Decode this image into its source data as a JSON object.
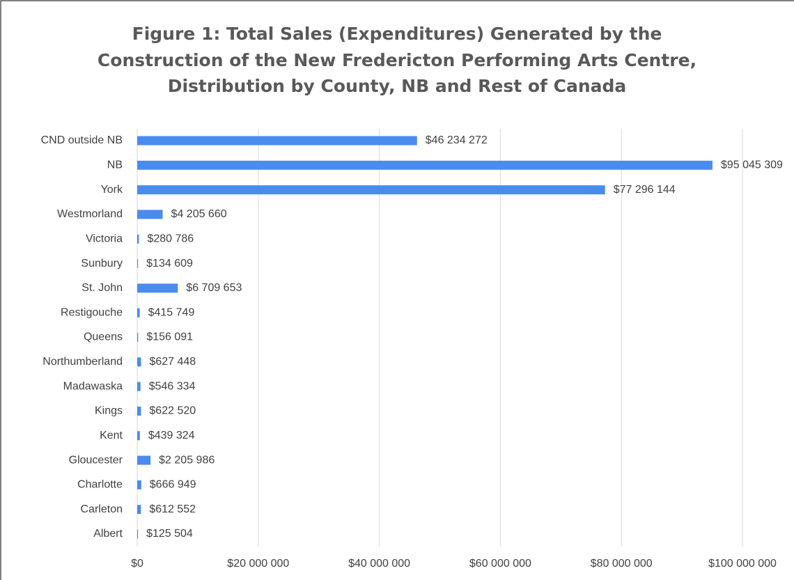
{
  "chart_data": {
    "type": "bar",
    "orientation": "horizontal",
    "title": [
      "Figure 1: Total Sales (Expenditures) Generated by the",
      "Construction of the New Fredericton Performing Arts Centre,",
      "Distribution by County, NB and Rest of Canada"
    ],
    "categories": [
      "CND outside NB",
      "NB",
      "York",
      "Westmorland",
      "Victoria",
      "Sunbury",
      "St. John",
      "Restigouche",
      "Queens",
      "Northumberland",
      "Madawaska",
      "Kings",
      "Kent",
      "Gloucester",
      "Charlotte",
      "Carleton",
      "Albert"
    ],
    "values": [
      46234272,
      95045309,
      77296144,
      4205660,
      280786,
      134609,
      6709653,
      415749,
      156091,
      627448,
      546334,
      622520,
      439324,
      2205986,
      666949,
      612552,
      125504
    ],
    "value_labels": [
      "$46 234 272",
      "$95 045 309",
      "$77 296 144",
      "$4 205 660",
      "$280 786",
      "$134 609",
      "$6 709 653",
      "$415 749",
      "$156 091",
      "$627 448",
      "$546 334",
      "$622 520",
      "$439 324",
      "$2 205 986",
      "$666 949",
      "$612 552",
      "$125 504"
    ],
    "color": "#4a8bf0",
    "xlim": [
      0,
      100000000
    ],
    "xticks": [
      {
        "value": 0,
        "label": "$0"
      },
      {
        "value": 20000000,
        "label": "$20 000 000"
      },
      {
        "value": 40000000,
        "label": "$40 000 000"
      },
      {
        "value": 60000000,
        "label": "$60 000 000"
      },
      {
        "value": 80000000,
        "label": "$80 000 000"
      },
      {
        "value": 100000000,
        "label": "$100 000 000"
      }
    ],
    "grid": true
  }
}
